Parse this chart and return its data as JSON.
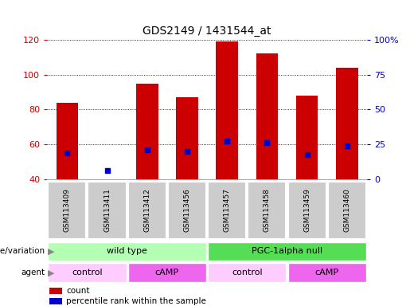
{
  "title": "GDS2149 / 1431544_at",
  "samples": [
    "GSM113409",
    "GSM113411",
    "GSM113412",
    "GSM113456",
    "GSM113457",
    "GSM113458",
    "GSM113459",
    "GSM113460"
  ],
  "bar_heights": [
    84,
    40,
    95,
    87,
    119,
    112,
    88,
    104
  ],
  "bar_base": 40,
  "percentile_ranks_left": [
    55,
    45,
    57,
    56,
    62,
    61,
    54,
    59
  ],
  "ylim_left": [
    40,
    120
  ],
  "yticks_left": [
    40,
    60,
    80,
    100,
    120
  ],
  "yticks_right": [
    0,
    25,
    50,
    75,
    100
  ],
  "yticklabels_right": [
    "0",
    "25",
    "50",
    "75",
    "100%"
  ],
  "bar_color": "#cc0000",
  "dot_color": "#0000cc",
  "bar_width": 0.55,
  "genotype_groups": [
    {
      "label": "wild type",
      "start": 0,
      "end": 4,
      "color": "#b3ffb3"
    },
    {
      "label": "PGC-1alpha null",
      "start": 4,
      "end": 8,
      "color": "#55dd55"
    }
  ],
  "agent_groups": [
    {
      "label": "control",
      "start": 0,
      "end": 2,
      "color": "#ffccff"
    },
    {
      "label": "cAMP",
      "start": 2,
      "end": 4,
      "color": "#ee66ee"
    },
    {
      "label": "control",
      "start": 4,
      "end": 6,
      "color": "#ffccff"
    },
    {
      "label": "cAMP",
      "start": 6,
      "end": 8,
      "color": "#ee66ee"
    }
  ],
  "legend_items": [
    {
      "label": "count",
      "color": "#cc0000"
    },
    {
      "label": "percentile rank within the sample",
      "color": "#0000cc"
    }
  ],
  "title_fontsize": 10,
  "tick_fontsize": 8,
  "label_fontsize": 8,
  "sample_fontsize": 6.5
}
